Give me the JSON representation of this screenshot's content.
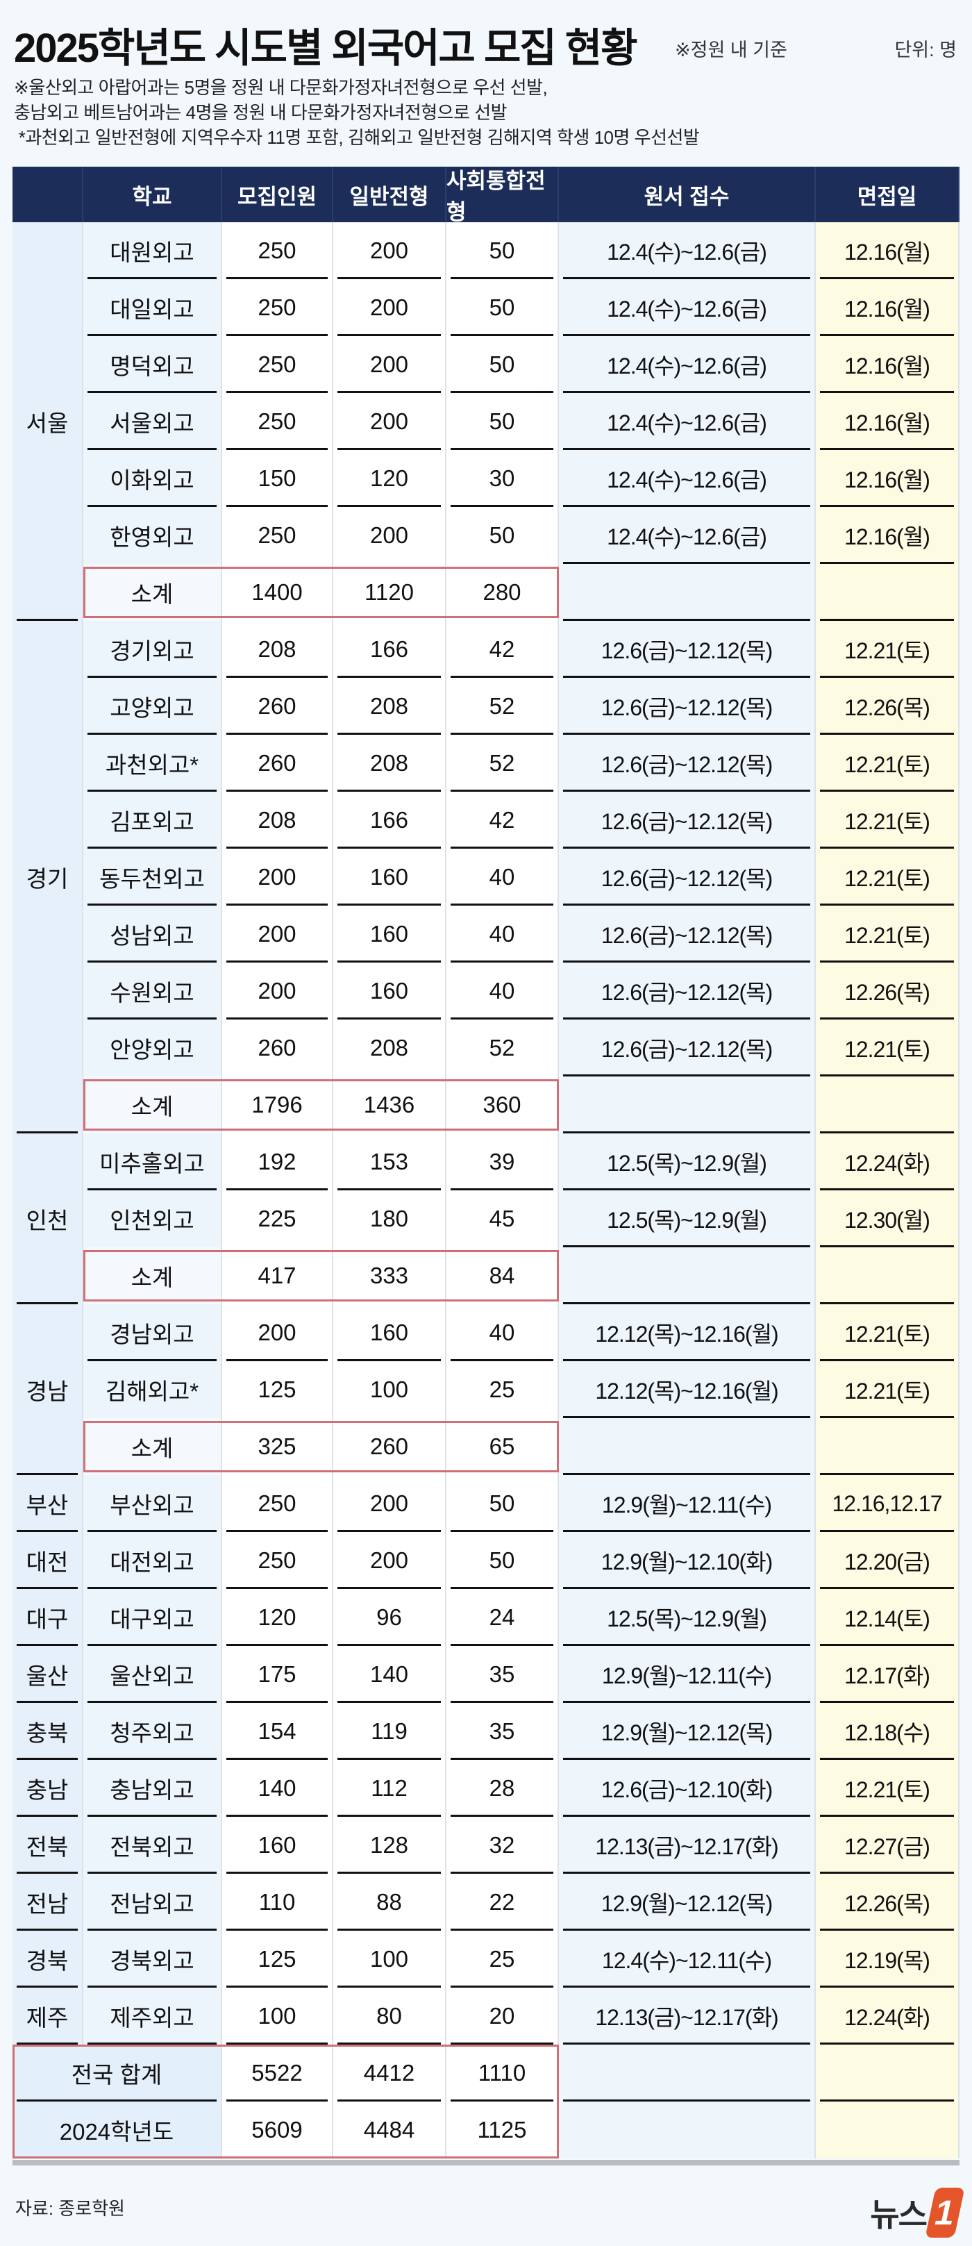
{
  "header": {
    "title": "2025학년도 시도별 외국어고 모집 현황",
    "basis": "※정원 내 기준",
    "unit": "단위: 명",
    "notes": [
      "※울산외고 아랍어과는 5명을 정원 내 다문화가정자녀전형으로 우선 선발,",
      "충남외고 베트남어과는 4명을 정원 내 다문화가정자녀전형으로 선발",
      " *과천외고 일반전형에 지역우수자 11명 포함, 김해외고 일반전형 김해지역 학생 10명 우선선발"
    ]
  },
  "columns": [
    "",
    "학교",
    "모집인원",
    "일반전형",
    "사회통합전형",
    "원서 접수",
    "면접일"
  ],
  "groups": [
    {
      "region": "서울",
      "rows": [
        {
          "school": "대원외고",
          "total": "250",
          "general": "200",
          "social": "50",
          "apply": "12.4(수)~12.6(금)",
          "interview": "12.16(월)"
        },
        {
          "school": "대일외고",
          "total": "250",
          "general": "200",
          "social": "50",
          "apply": "12.4(수)~12.6(금)",
          "interview": "12.16(월)"
        },
        {
          "school": "명덕외고",
          "total": "250",
          "general": "200",
          "social": "50",
          "apply": "12.4(수)~12.6(금)",
          "interview": "12.16(월)"
        },
        {
          "school": "서울외고",
          "total": "250",
          "general": "200",
          "social": "50",
          "apply": "12.4(수)~12.6(금)",
          "interview": "12.16(월)"
        },
        {
          "school": "이화외고",
          "total": "150",
          "general": "120",
          "social": "30",
          "apply": "12.4(수)~12.6(금)",
          "interview": "12.16(월)"
        },
        {
          "school": "한영외고",
          "total": "250",
          "general": "200",
          "social": "50",
          "apply": "12.4(수)~12.6(금)",
          "interview": "12.16(월)"
        }
      ],
      "subtotal": {
        "label": "소계",
        "total": "1400",
        "general": "1120",
        "social": "280"
      }
    },
    {
      "region": "경기",
      "rows": [
        {
          "school": "경기외고",
          "total": "208",
          "general": "166",
          "social": "42",
          "apply": "12.6(금)~12.12(목)",
          "interview": "12.21(토)"
        },
        {
          "school": "고양외고",
          "total": "260",
          "general": "208",
          "social": "52",
          "apply": "12.6(금)~12.12(목)",
          "interview": "12.26(목)"
        },
        {
          "school": "과천외고*",
          "total": "260",
          "general": "208",
          "social": "52",
          "apply": "12.6(금)~12.12(목)",
          "interview": "12.21(토)"
        },
        {
          "school": "김포외고",
          "total": "208",
          "general": "166",
          "social": "42",
          "apply": "12.6(금)~12.12(목)",
          "interview": "12.21(토)"
        },
        {
          "school": "동두천외고",
          "total": "200",
          "general": "160",
          "social": "40",
          "apply": "12.6(금)~12.12(목)",
          "interview": "12.21(토)"
        },
        {
          "school": "성남외고",
          "total": "200",
          "general": "160",
          "social": "40",
          "apply": "12.6(금)~12.12(목)",
          "interview": "12.21(토)"
        },
        {
          "school": "수원외고",
          "total": "200",
          "general": "160",
          "social": "40",
          "apply": "12.6(금)~12.12(목)",
          "interview": "12.26(목)"
        },
        {
          "school": "안양외고",
          "total": "260",
          "general": "208",
          "social": "52",
          "apply": "12.6(금)~12.12(목)",
          "interview": "12.21(토)"
        }
      ],
      "subtotal": {
        "label": "소계",
        "total": "1796",
        "general": "1436",
        "social": "360"
      }
    },
    {
      "region": "인천",
      "rows": [
        {
          "school": "미추홀외고",
          "total": "192",
          "general": "153",
          "social": "39",
          "apply": "12.5(목)~12.9(월)",
          "interview": "12.24(화)"
        },
        {
          "school": "인천외고",
          "total": "225",
          "general": "180",
          "social": "45",
          "apply": "12.5(목)~12.9(월)",
          "interview": "12.30(월)"
        }
      ],
      "subtotal": {
        "label": "소계",
        "total": "417",
        "general": "333",
        "social": "84"
      }
    },
    {
      "region": "경남",
      "rows": [
        {
          "school": "경남외고",
          "total": "200",
          "general": "160",
          "social": "40",
          "apply": "12.12(목)~12.16(월)",
          "interview": "12.21(토)"
        },
        {
          "school": "김해외고*",
          "total": "125",
          "general": "100",
          "social": "25",
          "apply": "12.12(목)~12.16(월)",
          "interview": "12.21(토)"
        }
      ],
      "subtotal": {
        "label": "소계",
        "total": "325",
        "general": "260",
        "social": "65"
      }
    },
    {
      "region": "부산",
      "rows": [
        {
          "school": "부산외고",
          "total": "250",
          "general": "200",
          "social": "50",
          "apply": "12.9(월)~12.11(수)",
          "interview": "12.16,12.17"
        }
      ]
    },
    {
      "region": "대전",
      "rows": [
        {
          "school": "대전외고",
          "total": "250",
          "general": "200",
          "social": "50",
          "apply": "12.9(월)~12.10(화)",
          "interview": "12.20(금)"
        }
      ]
    },
    {
      "region": "대구",
      "rows": [
        {
          "school": "대구외고",
          "total": "120",
          "general": "96",
          "social": "24",
          "apply": "12.5(목)~12.9(월)",
          "interview": "12.14(토)"
        }
      ]
    },
    {
      "region": "울산",
      "rows": [
        {
          "school": "울산외고",
          "total": "175",
          "general": "140",
          "social": "35",
          "apply": "12.9(월)~12.11(수)",
          "interview": "12.17(화)"
        }
      ]
    },
    {
      "region": "충북",
      "rows": [
        {
          "school": "청주외고",
          "total": "154",
          "general": "119",
          "social": "35",
          "apply": "12.9(월)~12.12(목)",
          "interview": "12.18(수)"
        }
      ]
    },
    {
      "region": "충남",
      "rows": [
        {
          "school": "충남외고",
          "total": "140",
          "general": "112",
          "social": "28",
          "apply": "12.6(금)~12.10(화)",
          "interview": "12.21(토)"
        }
      ]
    },
    {
      "region": "전북",
      "rows": [
        {
          "school": "전북외고",
          "total": "160",
          "general": "128",
          "social": "32",
          "apply": "12.13(금)~12.17(화)",
          "interview": "12.27(금)"
        }
      ]
    },
    {
      "region": "전남",
      "rows": [
        {
          "school": "전남외고",
          "total": "110",
          "general": "88",
          "social": "22",
          "apply": "12.9(월)~12.12(목)",
          "interview": "12.26(목)"
        }
      ]
    },
    {
      "region": "경북",
      "rows": [
        {
          "school": "경북외고",
          "total": "125",
          "general": "100",
          "social": "25",
          "apply": "12.4(수)~12.11(수)",
          "interview": "12.19(목)"
        }
      ]
    },
    {
      "region": "제주",
      "rows": [
        {
          "school": "제주외고",
          "total": "100",
          "general": "80",
          "social": "20",
          "apply": "12.13(금)~12.17(화)",
          "interview": "12.24(화)"
        }
      ]
    }
  ],
  "totals": [
    {
      "label": "전국 합계",
      "total": "5522",
      "general": "4412",
      "social": "1110"
    },
    {
      "label": "2024학년도",
      "total": "5609",
      "general": "4484",
      "social": "1125"
    }
  ],
  "footer": {
    "source": "자료: 종로학원",
    "logo": "뉴스1"
  },
  "colors": {
    "header_bg": "#1b2d58",
    "subtotal_box": "#cf6f76",
    "interview_bg": "#fdfbe2",
    "logo_accent": "#e4552a"
  }
}
